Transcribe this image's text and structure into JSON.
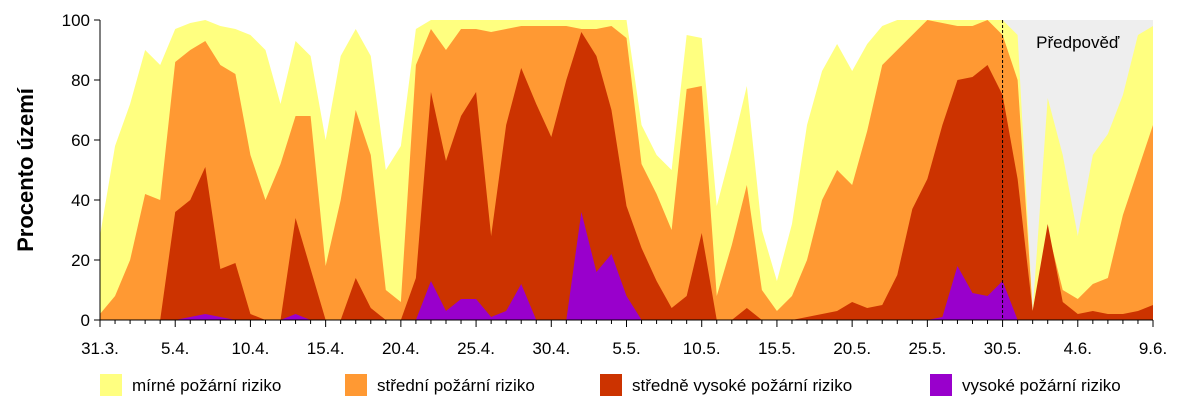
{
  "chart_data": {
    "type": "area",
    "stacking": "cumulative",
    "x_labels": [
      "31.3.",
      "5.4.",
      "10.4.",
      "15.4.",
      "20.4.",
      "25.4.",
      "30.4.",
      "5.5.",
      "10.5.",
      "15.5.",
      "20.5.",
      "25.5.",
      "30.5.",
      "4.6.",
      "9.6."
    ],
    "x_tick_days": [
      0,
      5,
      10,
      15,
      20,
      25,
      30,
      35,
      40,
      45,
      50,
      55,
      60,
      65,
      70
    ],
    "ylabel": "Procento území",
    "ylim": [
      0,
      100
    ],
    "yticks": [
      0,
      20,
      40,
      60,
      80,
      100
    ],
    "forecast": {
      "label": "Předpověď",
      "start_day": 60,
      "end_day": 70,
      "color": "#eeeeee"
    },
    "legend_position": "bottom",
    "series": [
      {
        "name": "mírné požární riziko",
        "color": "#ffff80",
        "values": [
          [
            0,
            28
          ],
          [
            1,
            58
          ],
          [
            2,
            72
          ],
          [
            3,
            90
          ],
          [
            4,
            85
          ],
          [
            5,
            97
          ],
          [
            6,
            99
          ],
          [
            7,
            100
          ],
          [
            8,
            98
          ],
          [
            9,
            97
          ],
          [
            10,
            95
          ],
          [
            11,
            90
          ],
          [
            12,
            72
          ],
          [
            13,
            93
          ],
          [
            14,
            88
          ],
          [
            15,
            60
          ],
          [
            16,
            88
          ],
          [
            17,
            97
          ],
          [
            18,
            88
          ],
          [
            19,
            50
          ],
          [
            20,
            58
          ],
          [
            21,
            97
          ],
          [
            22,
            100
          ],
          [
            23,
            100
          ],
          [
            24,
            100
          ],
          [
            25,
            100
          ],
          [
            26,
            100
          ],
          [
            27,
            100
          ],
          [
            28,
            100
          ],
          [
            29,
            100
          ],
          [
            30,
            100
          ],
          [
            31,
            100
          ],
          [
            32,
            100
          ],
          [
            33,
            100
          ],
          [
            34,
            100
          ],
          [
            35,
            100
          ],
          [
            36,
            65
          ],
          [
            37,
            55
          ],
          [
            38,
            50
          ],
          [
            39,
            95
          ],
          [
            40,
            94
          ],
          [
            41,
            38
          ],
          [
            42,
            57
          ],
          [
            43,
            78
          ],
          [
            44,
            30
          ],
          [
            45,
            13
          ],
          [
            46,
            32
          ],
          [
            47,
            65
          ],
          [
            48,
            83
          ],
          [
            49,
            92
          ],
          [
            50,
            83
          ],
          [
            51,
            92
          ],
          [
            52,
            98
          ],
          [
            53,
            100
          ],
          [
            54,
            100
          ],
          [
            55,
            100
          ],
          [
            56,
            100
          ],
          [
            57,
            100
          ],
          [
            58,
            100
          ],
          [
            59,
            100
          ],
          [
            60,
            100
          ],
          [
            61,
            95
          ],
          [
            62,
            3
          ],
          [
            63,
            74
          ],
          [
            64,
            55
          ],
          [
            65,
            28
          ],
          [
            66,
            55
          ],
          [
            67,
            62
          ],
          [
            68,
            75
          ],
          [
            69,
            95
          ],
          [
            70,
            98
          ]
        ]
      },
      {
        "name": "střední požární riziko",
        "color": "#ff9933",
        "values": [
          [
            0,
            2
          ],
          [
            1,
            8
          ],
          [
            2,
            20
          ],
          [
            3,
            42
          ],
          [
            4,
            40
          ],
          [
            5,
            86
          ],
          [
            6,
            90
          ],
          [
            7,
            93
          ],
          [
            8,
            85
          ],
          [
            9,
            82
          ],
          [
            10,
            55
          ],
          [
            11,
            40
          ],
          [
            12,
            52
          ],
          [
            13,
            68
          ],
          [
            14,
            68
          ],
          [
            15,
            18
          ],
          [
            16,
            40
          ],
          [
            17,
            70
          ],
          [
            18,
            55
          ],
          [
            19,
            10
          ],
          [
            20,
            6
          ],
          [
            21,
            85
          ],
          [
            22,
            97
          ],
          [
            23,
            90
          ],
          [
            24,
            97
          ],
          [
            25,
            97
          ],
          [
            26,
            96
          ],
          [
            27,
            97
          ],
          [
            28,
            98
          ],
          [
            29,
            98
          ],
          [
            30,
            98
          ],
          [
            31,
            98
          ],
          [
            32,
            97
          ],
          [
            33,
            97
          ],
          [
            34,
            98
          ],
          [
            35,
            94
          ],
          [
            36,
            52
          ],
          [
            37,
            42
          ],
          [
            38,
            30
          ],
          [
            39,
            77
          ],
          [
            40,
            78
          ],
          [
            41,
            8
          ],
          [
            42,
            25
          ],
          [
            43,
            45
          ],
          [
            44,
            10
          ],
          [
            45,
            3
          ],
          [
            46,
            8
          ],
          [
            47,
            20
          ],
          [
            48,
            40
          ],
          [
            49,
            50
          ],
          [
            50,
            45
          ],
          [
            51,
            63
          ],
          [
            52,
            85
          ],
          [
            53,
            90
          ],
          [
            54,
            95
          ],
          [
            55,
            100
          ],
          [
            56,
            99
          ],
          [
            57,
            98
          ],
          [
            58,
            98
          ],
          [
            59,
            100
          ],
          [
            60,
            95
          ],
          [
            61,
            80
          ],
          [
            62,
            3
          ],
          [
            63,
            30
          ],
          [
            64,
            10
          ],
          [
            65,
            7
          ],
          [
            66,
            12
          ],
          [
            67,
            14
          ],
          [
            68,
            35
          ],
          [
            69,
            50
          ],
          [
            70,
            65
          ]
        ]
      },
      {
        "name": "středně vysoké požární riziko",
        "color": "#cc3300",
        "values": [
          [
            0,
            0
          ],
          [
            1,
            0
          ],
          [
            2,
            0
          ],
          [
            3,
            0
          ],
          [
            4,
            0
          ],
          [
            5,
            36
          ],
          [
            6,
            40
          ],
          [
            7,
            51
          ],
          [
            8,
            17
          ],
          [
            9,
            19
          ],
          [
            10,
            2
          ],
          [
            11,
            0
          ],
          [
            12,
            0
          ],
          [
            13,
            34
          ],
          [
            14,
            17
          ],
          [
            15,
            0
          ],
          [
            16,
            0
          ],
          [
            17,
            14
          ],
          [
            18,
            4
          ],
          [
            19,
            0
          ],
          [
            20,
            0
          ],
          [
            21,
            14
          ],
          [
            22,
            76
          ],
          [
            23,
            53
          ],
          [
            24,
            68
          ],
          [
            25,
            76
          ],
          [
            26,
            28
          ],
          [
            27,
            65
          ],
          [
            28,
            84
          ],
          [
            29,
            72
          ],
          [
            30,
            61
          ],
          [
            31,
            80
          ],
          [
            32,
            96
          ],
          [
            33,
            88
          ],
          [
            34,
            70
          ],
          [
            35,
            38
          ],
          [
            36,
            24
          ],
          [
            37,
            13
          ],
          [
            38,
            4
          ],
          [
            39,
            8
          ],
          [
            40,
            29
          ],
          [
            41,
            0
          ],
          [
            42,
            0
          ],
          [
            43,
            4
          ],
          [
            44,
            0
          ],
          [
            45,
            0
          ],
          [
            46,
            0
          ],
          [
            47,
            1
          ],
          [
            48,
            2
          ],
          [
            49,
            3
          ],
          [
            50,
            6
          ],
          [
            51,
            4
          ],
          [
            52,
            5
          ],
          [
            53,
            15
          ],
          [
            54,
            37
          ],
          [
            55,
            47
          ],
          [
            56,
            65
          ],
          [
            57,
            80
          ],
          [
            58,
            81
          ],
          [
            59,
            85
          ],
          [
            60,
            75
          ],
          [
            61,
            47
          ],
          [
            62,
            3
          ],
          [
            63,
            32
          ],
          [
            64,
            6
          ],
          [
            65,
            2
          ],
          [
            66,
            3
          ],
          [
            67,
            2
          ],
          [
            68,
            2
          ],
          [
            69,
            3
          ],
          [
            70,
            5
          ]
        ]
      },
      {
        "name": "vysoké požární riziko",
        "color": "#9900cc",
        "values": [
          [
            0,
            0
          ],
          [
            1,
            0
          ],
          [
            2,
            0
          ],
          [
            3,
            0
          ],
          [
            4,
            0
          ],
          [
            5,
            0
          ],
          [
            6,
            1
          ],
          [
            7,
            2
          ],
          [
            8,
            1
          ],
          [
            9,
            0
          ],
          [
            10,
            0
          ],
          [
            11,
            0
          ],
          [
            12,
            0
          ],
          [
            13,
            2
          ],
          [
            14,
            0
          ],
          [
            15,
            0
          ],
          [
            16,
            0
          ],
          [
            17,
            0
          ],
          [
            18,
            0
          ],
          [
            19,
            0
          ],
          [
            20,
            0
          ],
          [
            21,
            0
          ],
          [
            22,
            13
          ],
          [
            23,
            3
          ],
          [
            24,
            7
          ],
          [
            25,
            7
          ],
          [
            26,
            1
          ],
          [
            27,
            3
          ],
          [
            28,
            12
          ],
          [
            29,
            0
          ],
          [
            30,
            0
          ],
          [
            31,
            0
          ],
          [
            32,
            36
          ],
          [
            33,
            16
          ],
          [
            34,
            22
          ],
          [
            35,
            8
          ],
          [
            36,
            0
          ],
          [
            37,
            0
          ],
          [
            38,
            0
          ],
          [
            39,
            0
          ],
          [
            40,
            0
          ],
          [
            41,
            0
          ],
          [
            42,
            0
          ],
          [
            43,
            0
          ],
          [
            44,
            0
          ],
          [
            45,
            0
          ],
          [
            46,
            0
          ],
          [
            47,
            0
          ],
          [
            48,
            0
          ],
          [
            49,
            0
          ],
          [
            50,
            0
          ],
          [
            51,
            0
          ],
          [
            52,
            0
          ],
          [
            53,
            0
          ],
          [
            54,
            0
          ],
          [
            55,
            0
          ],
          [
            56,
            1
          ],
          [
            57,
            18
          ],
          [
            58,
            9
          ],
          [
            59,
            8
          ],
          [
            60,
            13
          ],
          [
            61,
            0
          ],
          [
            62,
            0
          ],
          [
            63,
            0
          ],
          [
            64,
            0
          ],
          [
            65,
            0
          ],
          [
            66,
            0
          ],
          [
            67,
            0
          ],
          [
            68,
            0
          ],
          [
            69,
            0
          ],
          [
            70,
            0
          ]
        ]
      }
    ]
  }
}
